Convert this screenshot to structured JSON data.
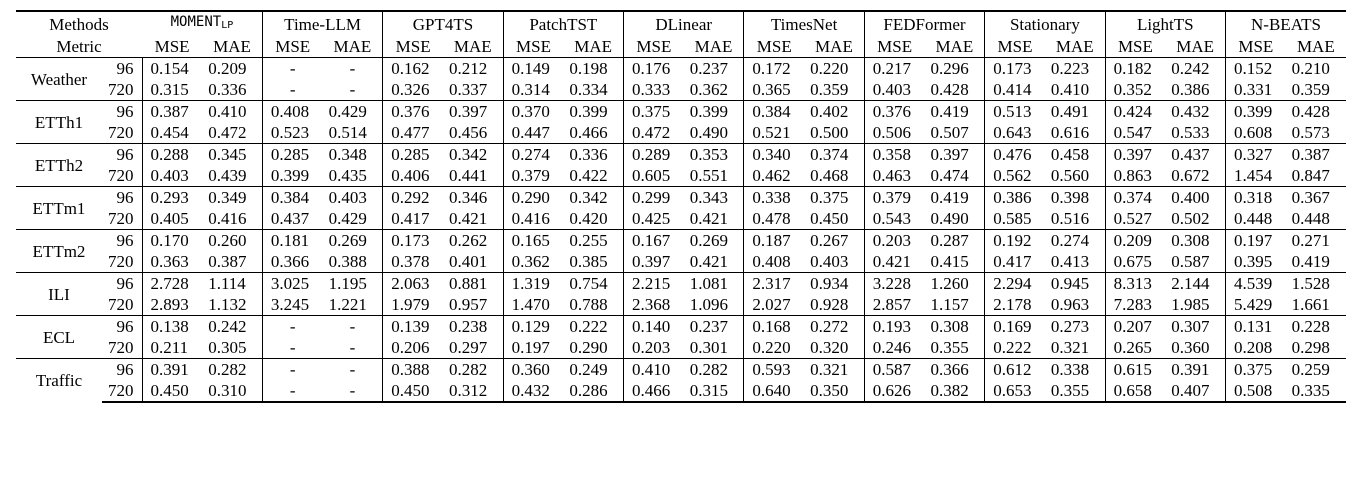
{
  "header": {
    "methods_label": "Methods",
    "metric_label": "Metric",
    "models": [
      "MOMENT",
      "Time-LLM",
      "GPT4TS",
      "PatchTST",
      "DLinear",
      "TimesNet",
      "FEDFormer",
      "Stationary",
      "LightTS",
      "N-BEATS"
    ],
    "moment_subscript": "LP",
    "mse": "MSE",
    "mae": "MAE"
  },
  "rows": [
    {
      "dataset": "Weather",
      "h": [
        "96",
        "720"
      ],
      "vals": [
        [
          "0.154",
          "0.209",
          "-",
          "-",
          "0.162",
          "0.212",
          "0.149",
          "0.198",
          "0.176",
          "0.237",
          "0.172",
          "0.220",
          "0.217",
          "0.296",
          "0.173",
          "0.223",
          "0.182",
          "0.242",
          "0.152",
          "0.210"
        ],
        [
          "0.315",
          "0.336",
          "-",
          "-",
          "0.326",
          "0.337",
          "0.314",
          "0.334",
          "0.333",
          "0.362",
          "0.365",
          "0.359",
          "0.403",
          "0.428",
          "0.414",
          "0.410",
          "0.352",
          "0.386",
          "0.331",
          "0.359"
        ]
      ]
    },
    {
      "dataset": "ETTh1",
      "h": [
        "96",
        "720"
      ],
      "vals": [
        [
          "0.387",
          "0.410",
          "0.408",
          "0.429",
          "0.376",
          "0.397",
          "0.370",
          "0.399",
          "0.375",
          "0.399",
          "0.384",
          "0.402",
          "0.376",
          "0.419",
          "0.513",
          "0.491",
          "0.424",
          "0.432",
          "0.399",
          "0.428"
        ],
        [
          "0.454",
          "0.472",
          "0.523",
          "0.514",
          "0.477",
          "0.456",
          "0.447",
          "0.466",
          "0.472",
          "0.490",
          "0.521",
          "0.500",
          "0.506",
          "0.507",
          "0.643",
          "0.616",
          "0.547",
          "0.533",
          "0.608",
          "0.573"
        ]
      ]
    },
    {
      "dataset": "ETTh2",
      "h": [
        "96",
        "720"
      ],
      "vals": [
        [
          "0.288",
          "0.345",
          "0.285",
          "0.348",
          "0.285",
          "0.342",
          "0.274",
          "0.336",
          "0.289",
          "0.353",
          "0.340",
          "0.374",
          "0.358",
          "0.397",
          "0.476",
          "0.458",
          "0.397",
          "0.437",
          "0.327",
          "0.387"
        ],
        [
          "0.403",
          "0.439",
          "0.399",
          "0.435",
          "0.406",
          "0.441",
          "0.379",
          "0.422",
          "0.605",
          "0.551",
          "0.462",
          "0.468",
          "0.463",
          "0.474",
          "0.562",
          "0.560",
          "0.863",
          "0.672",
          "1.454",
          "0.847"
        ]
      ]
    },
    {
      "dataset": "ETTm1",
      "h": [
        "96",
        "720"
      ],
      "vals": [
        [
          "0.293",
          "0.349",
          "0.384",
          "0.403",
          "0.292",
          "0.346",
          "0.290",
          "0.342",
          "0.299",
          "0.343",
          "0.338",
          "0.375",
          "0.379",
          "0.419",
          "0.386",
          "0.398",
          "0.374",
          "0.400",
          "0.318",
          "0.367"
        ],
        [
          "0.405",
          "0.416",
          "0.437",
          "0.429",
          "0.417",
          "0.421",
          "0.416",
          "0.420",
          "0.425",
          "0.421",
          "0.478",
          "0.450",
          "0.543",
          "0.490",
          "0.585",
          "0.516",
          "0.527",
          "0.502",
          "0.448",
          "0.448"
        ]
      ]
    },
    {
      "dataset": "ETTm2",
      "h": [
        "96",
        "720"
      ],
      "vals": [
        [
          "0.170",
          "0.260",
          "0.181",
          "0.269",
          "0.173",
          "0.262",
          "0.165",
          "0.255",
          "0.167",
          "0.269",
          "0.187",
          "0.267",
          "0.203",
          "0.287",
          "0.192",
          "0.274",
          "0.209",
          "0.308",
          "0.197",
          "0.271"
        ],
        [
          "0.363",
          "0.387",
          "0.366",
          "0.388",
          "0.378",
          "0.401",
          "0.362",
          "0.385",
          "0.397",
          "0.421",
          "0.408",
          "0.403",
          "0.421",
          "0.415",
          "0.417",
          "0.413",
          "0.675",
          "0.587",
          "0.395",
          "0.419"
        ]
      ]
    },
    {
      "dataset": "ILI",
      "h": [
        "96",
        "720"
      ],
      "vals": [
        [
          "2.728",
          "1.114",
          "3.025",
          "1.195",
          "2.063",
          "0.881",
          "1.319",
          "0.754",
          "2.215",
          "1.081",
          "2.317",
          "0.934",
          "3.228",
          "1.260",
          "2.294",
          "0.945",
          "8.313",
          "2.144",
          "4.539",
          "1.528"
        ],
        [
          "2.893",
          "1.132",
          "3.245",
          "1.221",
          "1.979",
          "0.957",
          "1.470",
          "0.788",
          "2.368",
          "1.096",
          "2.027",
          "0.928",
          "2.857",
          "1.157",
          "2.178",
          "0.963",
          "7.283",
          "1.985",
          "5.429",
          "1.661"
        ]
      ]
    },
    {
      "dataset": "ECL",
      "h": [
        "96",
        "720"
      ],
      "vals": [
        [
          "0.138",
          "0.242",
          "-",
          "-",
          "0.139",
          "0.238",
          "0.129",
          "0.222",
          "0.140",
          "0.237",
          "0.168",
          "0.272",
          "0.193",
          "0.308",
          "0.169",
          "0.273",
          "0.207",
          "0.307",
          "0.131",
          "0.228"
        ],
        [
          "0.211",
          "0.305",
          "-",
          "-",
          "0.206",
          "0.297",
          "0.197",
          "0.290",
          "0.203",
          "0.301",
          "0.220",
          "0.320",
          "0.246",
          "0.355",
          "0.222",
          "0.321",
          "0.265",
          "0.360",
          "0.208",
          "0.298"
        ]
      ]
    },
    {
      "dataset": "Traffic",
      "h": [
        "96",
        "720"
      ],
      "vals": [
        [
          "0.391",
          "0.282",
          "-",
          "-",
          "0.388",
          "0.282",
          "0.360",
          "0.249",
          "0.410",
          "0.282",
          "0.593",
          "0.321",
          "0.587",
          "0.366",
          "0.612",
          "0.338",
          "0.615",
          "0.391",
          "0.375",
          "0.259"
        ],
        [
          "0.450",
          "0.310",
          "-",
          "-",
          "0.450",
          "0.312",
          "0.432",
          "0.286",
          "0.466",
          "0.315",
          "0.640",
          "0.350",
          "0.626",
          "0.382",
          "0.653",
          "0.355",
          "0.658",
          "0.407",
          "0.508",
          "0.335"
        ]
      ]
    }
  ]
}
